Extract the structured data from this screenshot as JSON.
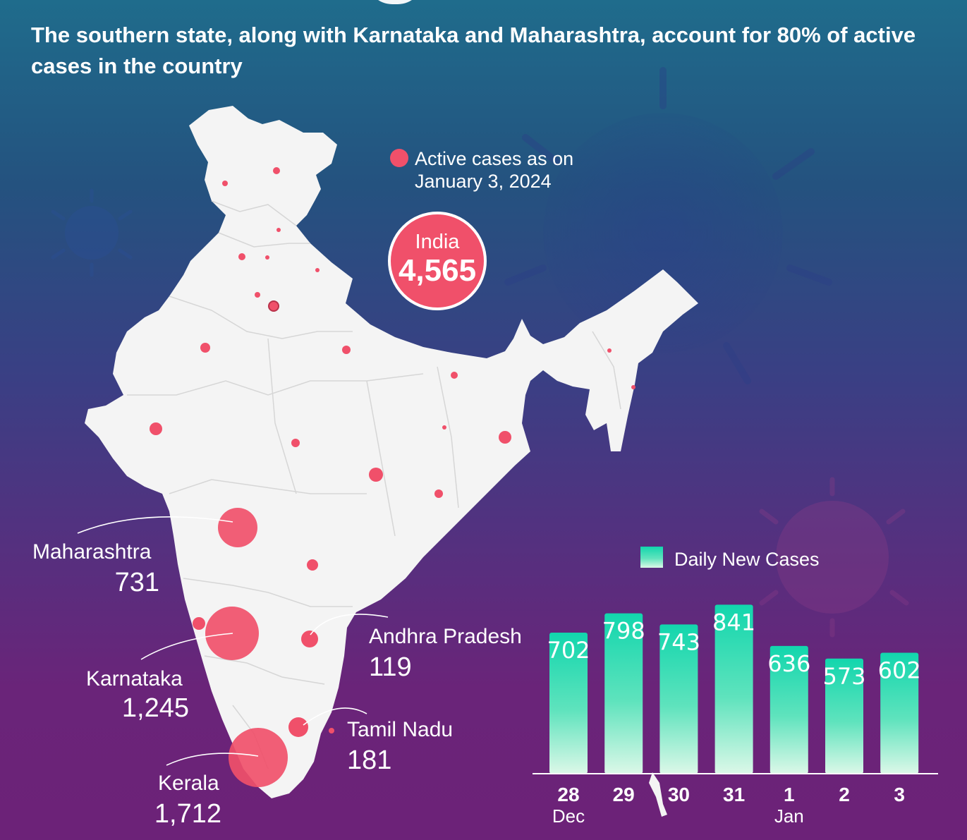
{
  "subtitle": "The southern state, along with Karnataka and Maharashtra, account for 80% of active cases in the country",
  "map_legend": {
    "line1": "Active cases as on",
    "line2": "January 3, 2024"
  },
  "total": {
    "label": "India",
    "value": "4,565"
  },
  "states": [
    {
      "name": "Maharashtra",
      "value": "731"
    },
    {
      "name": "Karnataka",
      "value": "1,245"
    },
    {
      "name": "Kerala",
      "value": "1,712"
    },
    {
      "name": "Andhra Pradesh",
      "value": "119"
    },
    {
      "name": "Tamil Nadu",
      "value": "181"
    }
  ],
  "colors": {
    "bubble": "#f0506a",
    "bar_top": "#17d9b0",
    "bar_bottom": "#d9f7e6",
    "map": "#f4f4f4"
  },
  "chart_data": {
    "type": "bar",
    "legend": "Daily New Cases",
    "categories": [
      "28",
      "29",
      "30",
      "31",
      "1",
      "2",
      "3"
    ],
    "category_sublabels": [
      "Dec",
      "",
      "",
      "",
      "Jan",
      "",
      ""
    ],
    "series": [
      {
        "name": "Daily New Cases",
        "values": [
          702,
          798,
          743,
          841,
          636,
          573,
          602
        ]
      }
    ],
    "ylim": [
      0,
      860
    ],
    "grid": false
  }
}
